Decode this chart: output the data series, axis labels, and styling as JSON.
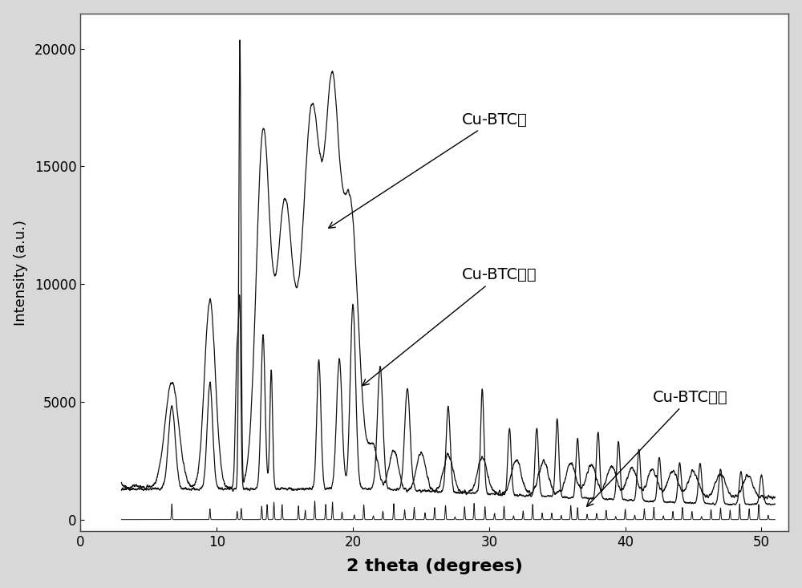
{
  "xlabel": "2 theta (degrees)",
  "ylabel": "Intensity (a.u.)",
  "xlim": [
    0,
    52
  ],
  "ylim": [
    -500,
    21500
  ],
  "yticks": [
    0,
    5000,
    10000,
    15000,
    20000
  ],
  "xticks": [
    0,
    10,
    20,
    30,
    40,
    50
  ],
  "bg_color": "#d8d8d8",
  "plot_bg": "#ffffff",
  "line_color": "#111111",
  "label_film": "Cu-BTC膜",
  "label_powder": "Cu-BTC粉末",
  "label_simulated": "Cu-BTC模拟",
  "xlabel_fontsize": 16,
  "ylabel_fontsize": 13,
  "tick_fontsize": 12,
  "annotation_fontsize": 14
}
